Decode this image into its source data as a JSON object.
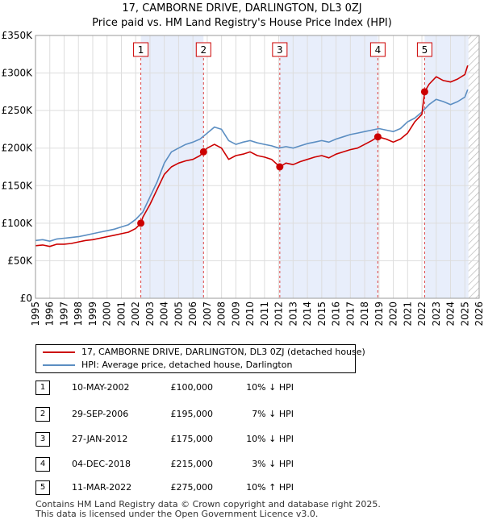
{
  "chart_data": {
    "type": "line",
    "title": "17, CAMBORNE DRIVE, DARLINGTON, DL3 0ZJ",
    "subtitle": "Price paid vs. HM Land Registry's House Price Index (HPI)",
    "xlabel": "",
    "ylabel": "",
    "xlim": [
      1995,
      2026
    ],
    "ylim": [
      0,
      350000
    ],
    "x_ticks": [
      "1995",
      "1996",
      "1997",
      "1998",
      "1999",
      "2000",
      "2001",
      "2002",
      "2003",
      "2004",
      "2005",
      "2006",
      "2007",
      "2008",
      "2009",
      "2010",
      "2011",
      "2012",
      "2013",
      "2014",
      "2015",
      "2016",
      "2017",
      "2018",
      "2019",
      "2020",
      "2021",
      "2022",
      "2023",
      "2024",
      "2025",
      "2026"
    ],
    "y_ticks": [
      {
        "value": 0,
        "label": "£0"
      },
      {
        "value": 50000,
        "label": "£50K"
      },
      {
        "value": 100000,
        "label": "£100K"
      },
      {
        "value": 150000,
        "label": "£150K"
      },
      {
        "value": 200000,
        "label": "£200K"
      },
      {
        "value": 250000,
        "label": "£250K"
      },
      {
        "value": 300000,
        "label": "£300K"
      },
      {
        "value": 350000,
        "label": "£350K"
      }
    ],
    "grid": true,
    "shaded_periods": [
      [
        2002.36,
        2006.74
      ],
      [
        2012.07,
        2018.92
      ],
      [
        2022.19,
        2025.25
      ]
    ],
    "future_hatch_start": 2025.25,
    "series": [
      {
        "name": "17, CAMBORNE DRIVE, DARLINGTON, DL3 0ZJ (detached house)",
        "color": "#cc0000",
        "x": [
          1995.0,
          1995.5,
          1996.0,
          1996.5,
          1997.0,
          1997.5,
          1998.0,
          1998.5,
          1999.0,
          1999.5,
          2000.0,
          2000.5,
          2001.0,
          2001.5,
          2002.0,
          2002.36,
          2002.5,
          2003.0,
          2003.5,
          2004.0,
          2004.5,
          2005.0,
          2005.5,
          2006.0,
          2006.5,
          2006.74,
          2007.0,
          2007.5,
          2008.0,
          2008.5,
          2009.0,
          2009.5,
          2010.0,
          2010.5,
          2011.0,
          2011.5,
          2012.07,
          2012.5,
          2013.0,
          2013.5,
          2014.0,
          2014.5,
          2015.0,
          2015.5,
          2016.0,
          2016.5,
          2017.0,
          2017.5,
          2018.0,
          2018.5,
          2018.92,
          2019.5,
          2020.0,
          2020.5,
          2021.0,
          2021.5,
          2022.0,
          2022.19,
          2022.5,
          2023.0,
          2023.5,
          2024.0,
          2024.5,
          2025.0,
          2025.2
        ],
        "y": [
          70000,
          71000,
          69000,
          72000,
          72000,
          73000,
          75000,
          77000,
          78000,
          80000,
          82000,
          84000,
          86000,
          88000,
          93000,
          100000,
          108000,
          125000,
          145000,
          165000,
          175000,
          180000,
          183000,
          185000,
          190000,
          195000,
          200000,
          205000,
          200000,
          185000,
          190000,
          192000,
          195000,
          190000,
          188000,
          185000,
          175000,
          180000,
          178000,
          182000,
          185000,
          188000,
          190000,
          187000,
          192000,
          195000,
          198000,
          200000,
          205000,
          210000,
          215000,
          212000,
          208000,
          212000,
          220000,
          235000,
          245000,
          275000,
          285000,
          295000,
          290000,
          288000,
          292000,
          298000,
          310000
        ]
      },
      {
        "name": "HPI: Average price, detached house, Darlington",
        "color": "#5b8ec2",
        "x": [
          1995.0,
          1995.5,
          1996.0,
          1996.5,
          1997.0,
          1997.5,
          1998.0,
          1998.5,
          1999.0,
          1999.5,
          2000.0,
          2000.5,
          2001.0,
          2001.5,
          2002.0,
          2002.5,
          2003.0,
          2003.5,
          2004.0,
          2004.5,
          2005.0,
          2005.5,
          2006.0,
          2006.5,
          2007.0,
          2007.5,
          2008.0,
          2008.5,
          2009.0,
          2009.5,
          2010.0,
          2010.5,
          2011.0,
          2011.5,
          2012.0,
          2012.5,
          2013.0,
          2013.5,
          2014.0,
          2014.5,
          2015.0,
          2015.5,
          2016.0,
          2016.5,
          2017.0,
          2017.5,
          2018.0,
          2018.5,
          2019.0,
          2019.5,
          2020.0,
          2020.5,
          2021.0,
          2021.5,
          2022.0,
          2022.5,
          2023.0,
          2023.5,
          2024.0,
          2024.5,
          2025.0,
          2025.2
        ],
        "y": [
          77000,
          78000,
          76000,
          79000,
          80000,
          81000,
          82000,
          84000,
          86000,
          88000,
          90000,
          92000,
          95000,
          98000,
          105000,
          115000,
          135000,
          155000,
          180000,
          195000,
          200000,
          205000,
          208000,
          212000,
          220000,
          228000,
          225000,
          210000,
          205000,
          208000,
          210000,
          207000,
          205000,
          203000,
          200000,
          202000,
          200000,
          203000,
          206000,
          208000,
          210000,
          208000,
          212000,
          215000,
          218000,
          220000,
          222000,
          224000,
          226000,
          224000,
          222000,
          226000,
          235000,
          240000,
          248000,
          258000,
          265000,
          262000,
          258000,
          262000,
          268000,
          278000
        ]
      }
    ],
    "sales": [
      {
        "num": "1",
        "x": 2002.36,
        "y": 100000
      },
      {
        "num": "2",
        "x": 2006.74,
        "y": 195000
      },
      {
        "num": "3",
        "x": 2012.07,
        "y": 175000
      },
      {
        "num": "4",
        "x": 2018.92,
        "y": 215000
      },
      {
        "num": "5",
        "x": 2022.19,
        "y": 275000
      }
    ]
  },
  "legend": {
    "property_label": "17, CAMBORNE DRIVE, DARLINGTON, DL3 0ZJ (detached house)",
    "hpi_label": "HPI: Average price, detached house, Darlington"
  },
  "table": {
    "rows": [
      {
        "num": "1",
        "date": "10-MAY-2002",
        "price": "£100,000",
        "hpi": "10% ↓ HPI"
      },
      {
        "num": "2",
        "date": "29-SEP-2006",
        "price": "£195,000",
        "hpi": "7% ↓ HPI"
      },
      {
        "num": "3",
        "date": "27-JAN-2012",
        "price": "£175,000",
        "hpi": "10% ↓ HPI"
      },
      {
        "num": "4",
        "date": "04-DEC-2018",
        "price": "£215,000",
        "hpi": "3% ↓ HPI"
      },
      {
        "num": "5",
        "date": "11-MAR-2022",
        "price": "£275,000",
        "hpi": "10% ↑ HPI"
      }
    ]
  },
  "footer": {
    "line1": "Contains HM Land Registry data © Crown copyright and database right 2025.",
    "line2": "This data is licensed under the Open Government Licence v3.0."
  }
}
